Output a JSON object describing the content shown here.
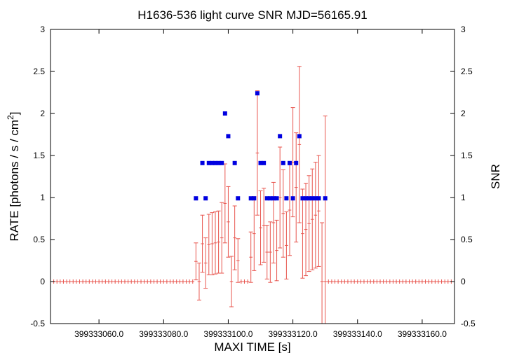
{
  "chart_data": {
    "type": "scatter",
    "title": "H1636-536 light curve  SNR MJD=56165.91",
    "xlabel": "MAXI TIME [s]",
    "ylabel_base": "RATE [photons / s / cm",
    "ylabel_sup": "2",
    "ylabel_close": "]",
    "y2label": "SNR",
    "xlim": [
      399333045,
      399333170
    ],
    "ylim": [
      -0.5,
      3
    ],
    "y2lim": [
      -0.5,
      3
    ],
    "xticks": [
      399333060,
      399333080,
      399333100,
      399333120,
      399333140,
      399333160
    ],
    "xtick_labels": [
      "399333060.0",
      "399333080.0",
      "399333100.0",
      "399333120.0",
      "399333140.0",
      "399333160.0"
    ],
    "yticks": [
      -0.5,
      0,
      0.5,
      1,
      1.5,
      2,
      2.5,
      3
    ],
    "ytick_labels": [
      "-0.5",
      "0",
      "0.5",
      "1",
      "1.5",
      "2",
      "2.5",
      "3"
    ],
    "y2tick_labels": [
      "-0.5",
      "0",
      "0.5",
      "1",
      "1.5",
      "2",
      "2.5",
      "3"
    ],
    "grid": false,
    "colors": {
      "rate": "#e8554e",
      "snr": "#0000e0"
    },
    "rate_series": {
      "x_start": 399333045,
      "x_end": 399333170,
      "step": 1,
      "nonzero": [
        {
          "x": 399333090,
          "y": 0.24,
          "err": 0.22
        },
        {
          "x": 399333091,
          "y": 0.0,
          "err": 0.22
        },
        {
          "x": 399333092,
          "y": 0.45,
          "err": 0.34
        },
        {
          "x": 399333093,
          "y": 0.22,
          "err": 0.3
        },
        {
          "x": 399333094,
          "y": 0.44,
          "err": 0.36
        },
        {
          "x": 399333095,
          "y": 0.45,
          "err": 0.37
        },
        {
          "x": 399333096,
          "y": 0.46,
          "err": 0.37
        },
        {
          "x": 399333097,
          "y": 0.47,
          "err": 0.37
        },
        {
          "x": 399333098,
          "y": 0.52,
          "err": 0.42
        },
        {
          "x": 399333099,
          "y": 0.93,
          "err": 0.47
        },
        {
          "x": 399333100,
          "y": 0.71,
          "err": 0.42
        },
        {
          "x": 399333101,
          "y": 0.0,
          "err": 0.3
        },
        {
          "x": 399333102,
          "y": 0.52,
          "err": 0.38
        },
        {
          "x": 399333103,
          "y": 0.25,
          "err": 0.26
        },
        {
          "x": 399333107,
          "y": 0.29,
          "err": 0.3
        },
        {
          "x": 399333108,
          "y": 0.57,
          "err": 0.44
        },
        {
          "x": 399333109,
          "y": 1.53,
          "err": 0.74
        },
        {
          "x": 399333110,
          "y": 0.64,
          "err": 0.44
        },
        {
          "x": 399333111,
          "y": 0.67,
          "err": 0.44
        },
        {
          "x": 399333112,
          "y": 0.35,
          "err": 0.32
        },
        {
          "x": 399333113,
          "y": 0.35,
          "err": 0.36
        },
        {
          "x": 399333114,
          "y": 0.7,
          "err": 0.48
        },
        {
          "x": 399333115,
          "y": 0.37,
          "err": 0.36
        },
        {
          "x": 399333116,
          "y": 1.0,
          "err": 0.6
        },
        {
          "x": 399333117,
          "y": 0.81,
          "err": 0.52
        },
        {
          "x": 399333118,
          "y": 0.43,
          "err": 0.4
        },
        {
          "x": 399333119,
          "y": 0.85,
          "err": 0.54
        },
        {
          "x": 399333120,
          "y": 1.42,
          "err": 0.65
        },
        {
          "x": 399333121,
          "y": 1.12,
          "err": 0.65
        },
        {
          "x": 399333122,
          "y": 1.63,
          "err": 0.93
        },
        {
          "x": 399333123,
          "y": 0.57,
          "err": 0.53
        },
        {
          "x": 399333124,
          "y": 0.62,
          "err": 0.55
        },
        {
          "x": 399333125,
          "y": 0.69,
          "err": 0.57
        },
        {
          "x": 399333126,
          "y": 0.74,
          "err": 0.6
        },
        {
          "x": 399333127,
          "y": 0.79,
          "err": 0.63
        },
        {
          "x": 399333128,
          "y": 0.84,
          "err": 0.66
        },
        {
          "x": 399333129,
          "y": 0.0,
          "err": 0.7
        },
        {
          "x": 399333130,
          "y": 0.0,
          "err": 1.97
        }
      ],
      "zero_err": 0.01
    },
    "snr_series": {
      "x": [
        399333090,
        399333092,
        399333093,
        399333094,
        399333095,
        399333096,
        399333097,
        399333098,
        399333099,
        399333100,
        399333102,
        399333103,
        399333107,
        399333108,
        399333109,
        399333110,
        399333111,
        399333112,
        399333113,
        399333114,
        399333115,
        399333116,
        399333117,
        399333118,
        399333119,
        399333120,
        399333121,
        399333122,
        399333123,
        399333124,
        399333125,
        399333126,
        399333127,
        399333128,
        399333130
      ],
      "y": [
        0.99,
        1.41,
        0.99,
        1.41,
        1.41,
        1.41,
        1.41,
        1.41,
        2.0,
        1.73,
        1.41,
        0.99,
        0.99,
        0.99,
        2.24,
        1.41,
        1.41,
        0.99,
        0.99,
        0.99,
        0.99,
        1.73,
        1.41,
        0.99,
        1.41,
        0.99,
        1.41,
        1.73,
        0.99,
        0.99,
        0.99,
        0.99,
        0.99,
        0.99,
        0.99
      ]
    }
  }
}
